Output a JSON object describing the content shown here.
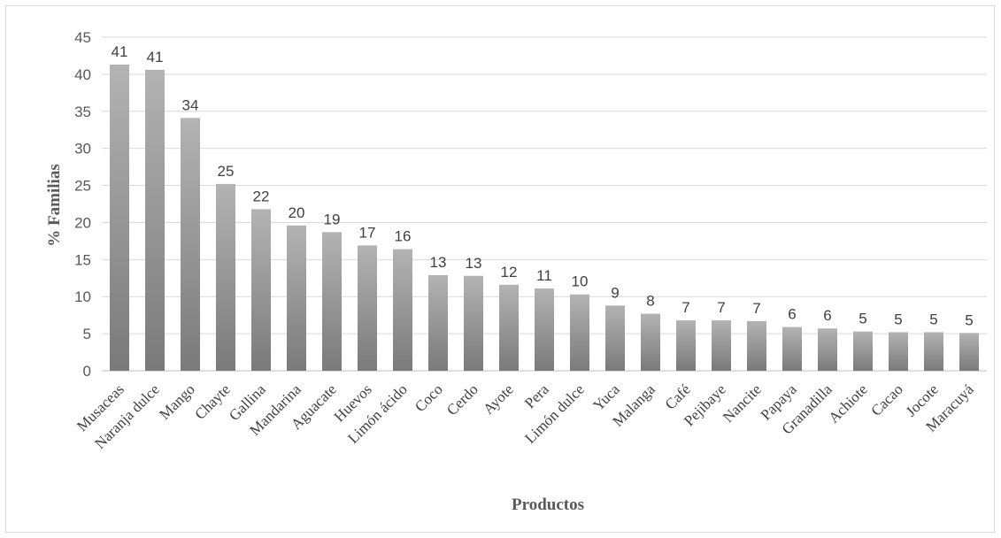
{
  "chart_data": {
    "type": "bar",
    "title": "",
    "xlabel": "Productos",
    "ylabel": "% Familias",
    "ylim": [
      0,
      45
    ],
    "yticks": [
      0,
      5,
      10,
      15,
      20,
      25,
      30,
      35,
      40,
      45
    ],
    "grid": true,
    "legend": "none",
    "categories": [
      "Musaceas",
      "Naranja dulce",
      "Mango",
      "Chayte",
      "Gallina",
      "Mandarina",
      "Aguacate",
      "Huevos",
      "Limón ácido",
      "Coco",
      "Cerdo",
      "Ayote",
      "Pera",
      "Limón dulce",
      "Yuca",
      "Malanga",
      "Café",
      "Pejibaye",
      "Nancite",
      "Papaya",
      "Granadilla",
      "Achiote",
      "Cacao",
      "Jocote",
      "Maracuyá"
    ],
    "values": [
      41.3,
      40.6,
      34.1,
      25.2,
      21.8,
      19.6,
      18.7,
      16.9,
      16.4,
      12.9,
      12.8,
      11.6,
      11.1,
      10.3,
      8.8,
      7.7,
      6.8,
      6.8,
      6.7,
      5.9,
      5.7,
      5.3,
      5.2,
      5.2,
      5.1
    ],
    "data_labels": [
      "41",
      "41",
      "34",
      "25",
      "22",
      "20",
      "19",
      "17",
      "16",
      "13",
      "13",
      "12",
      "11",
      "10",
      "9",
      "8",
      "7",
      "7",
      "7",
      "6",
      "6",
      "5",
      "5",
      "5",
      "5"
    ],
    "colors": {
      "bar_light": "#b3b3b3",
      "bar_dark": "#7a7a7a",
      "grid": "#d9d9d9",
      "axis": "#bfbfbf"
    }
  }
}
